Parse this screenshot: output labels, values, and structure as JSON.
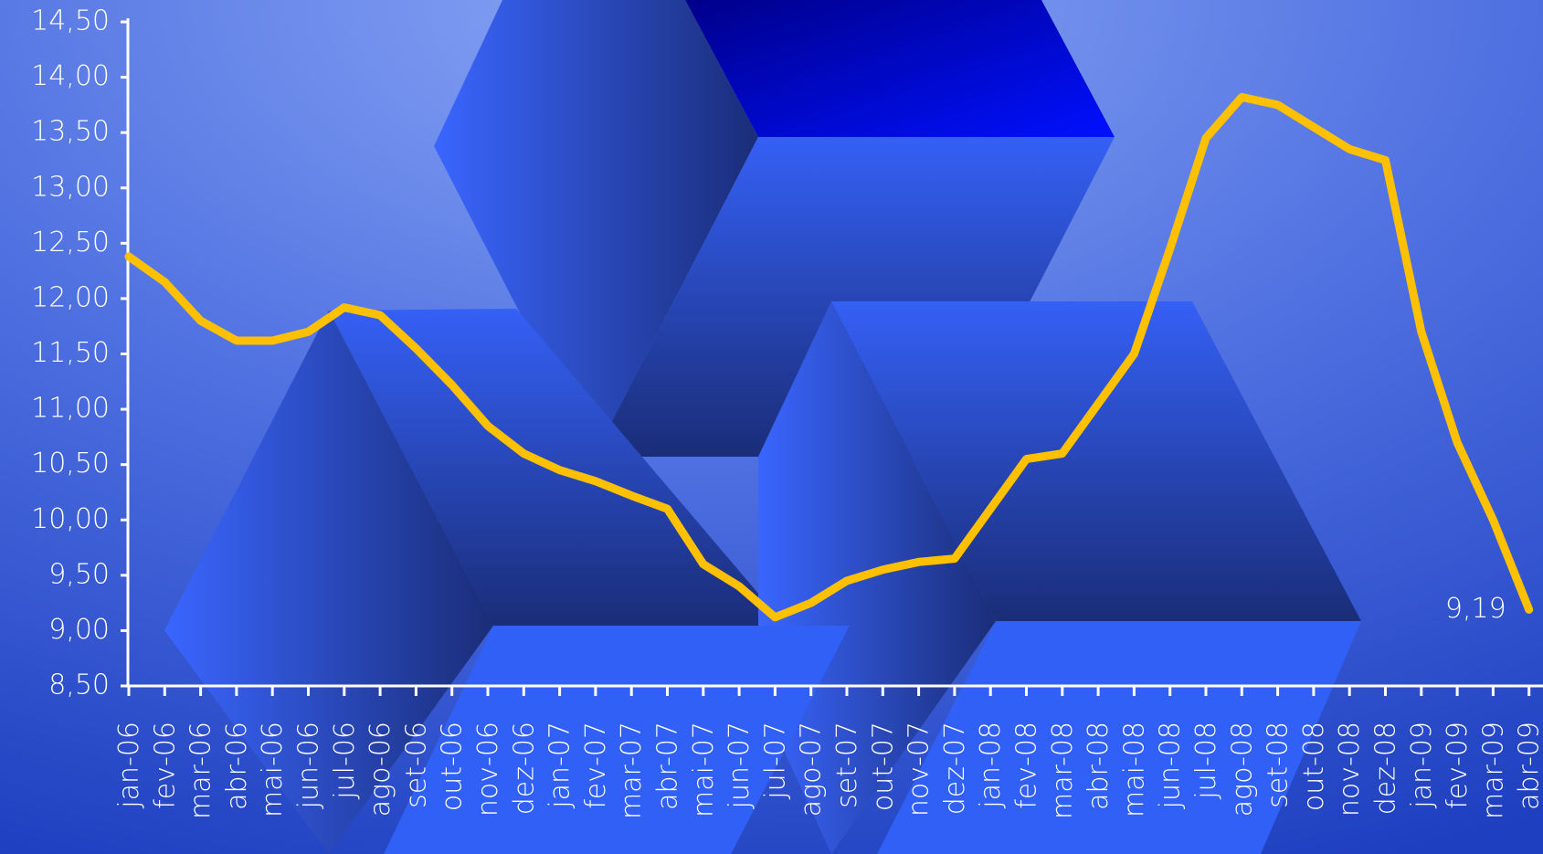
{
  "chart_data": {
    "type": "line",
    "categories": [
      "jan-06",
      "fev-06",
      "mar-06",
      "abr-06",
      "mai-06",
      "jun-06",
      "jul-06",
      "ago-06",
      "set-06",
      "out-06",
      "nov-06",
      "dez-06",
      "jan-07",
      "fev-07",
      "mar-07",
      "abr-07",
      "mai-07",
      "jun-07",
      "jul-07",
      "ago-07",
      "set-07",
      "out-07",
      "nov-07",
      "dez-07",
      "jan-08",
      "fev-08",
      "mar-08",
      "abr-08",
      "mai-08",
      "jun-08",
      "jul-08",
      "ago-08",
      "set-08",
      "out-08",
      "nov-08",
      "dez-08",
      "jan-09",
      "fev-09",
      "mar-09",
      "abr-09"
    ],
    "series": [
      {
        "color": "#ffc000",
        "values": [
          12.38,
          12.15,
          11.8,
          11.62,
          11.62,
          11.7,
          11.92,
          11.85,
          11.55,
          11.22,
          10.85,
          10.6,
          10.45,
          10.35,
          10.22,
          10.1,
          9.6,
          9.4,
          9.12,
          9.25,
          9.45,
          9.55,
          9.62,
          9.65,
          10.1,
          10.55,
          10.6,
          11.05,
          11.5,
          12.45,
          13.45,
          13.82,
          13.75,
          13.55,
          13.35,
          13.25,
          11.7,
          10.7,
          10.0,
          9.19
        ],
        "value_labels": [
          null,
          null,
          null,
          null,
          null,
          null,
          null,
          null,
          null,
          null,
          null,
          null,
          null,
          null,
          null,
          null,
          null,
          null,
          null,
          null,
          null,
          null,
          null,
          null,
          null,
          null,
          null,
          null,
          null,
          null,
          null,
          null,
          null,
          null,
          null,
          null,
          null,
          null,
          null,
          "9,19"
        ]
      }
    ],
    "ylim": [
      8.5,
      14.5
    ],
    "yticks": [
      {
        "value": 8.5,
        "label": "8,50"
      },
      {
        "value": 9,
        "label": "9,00"
      },
      {
        "value": 9.5,
        "label": "9,50"
      },
      {
        "value": 10,
        "label": "10,00"
      },
      {
        "value": 10.5,
        "label": "10,50"
      },
      {
        "value": 11,
        "label": "11,00"
      },
      {
        "value": 11.5,
        "label": "11,50"
      },
      {
        "value": 12,
        "label": "12,00"
      },
      {
        "value": 12.5,
        "label": "12,50"
      },
      {
        "value": 13,
        "label": "13,00"
      },
      {
        "value": 13.5,
        "label": "13,50"
      },
      {
        "value": 14,
        "label": "14,00"
      },
      {
        "value": 14.5,
        "label": "14,50"
      }
    ]
  }
}
